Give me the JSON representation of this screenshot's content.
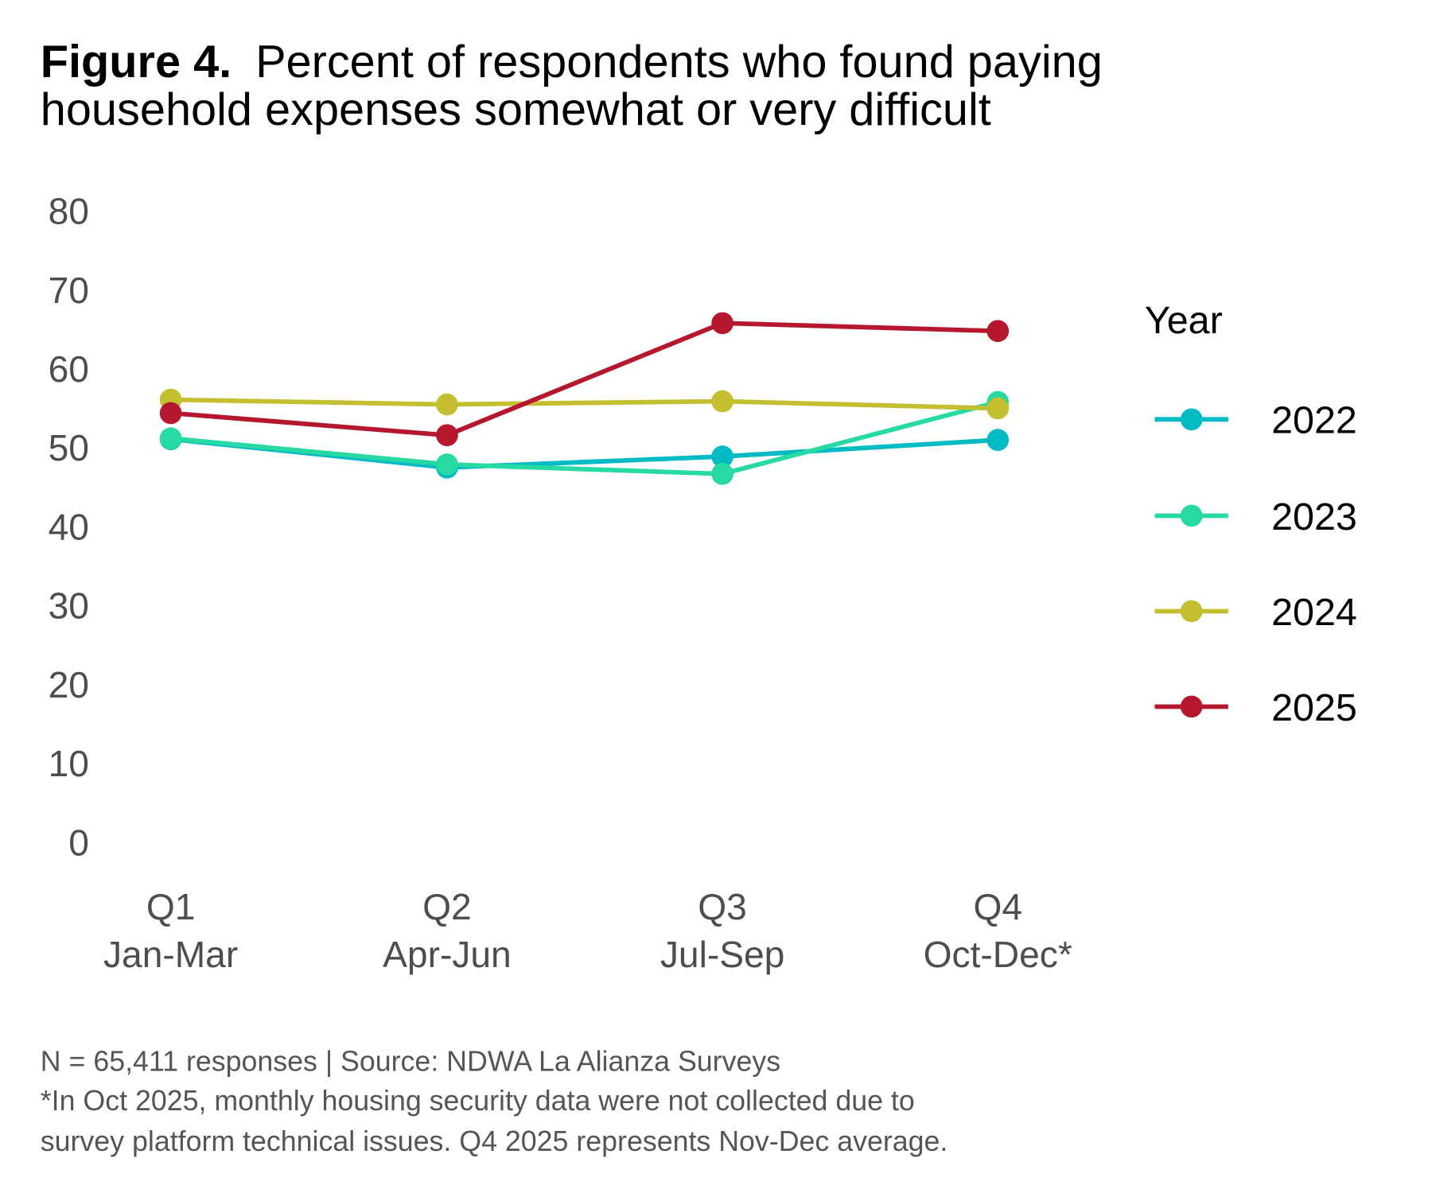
{
  "title": {
    "bold": "Figure 4.",
    "line1": "Percent of respondents who found paying",
    "line2": "household expenses somewhat or very difficult"
  },
  "chart_data": {
    "type": "line",
    "categories": [
      {
        "line1": "Q1",
        "line2": "Jan-Mar"
      },
      {
        "line1": "Q2",
        "line2": "Apr-Jun"
      },
      {
        "line1": "Q3",
        "line2": "Jul-Sep"
      },
      {
        "line1": "Q4",
        "line2": "Oct-Dec*"
      }
    ],
    "ylim": [
      0,
      80
    ],
    "yticks": [
      "0",
      "10",
      "20",
      "30",
      "40",
      "50",
      "60",
      "70",
      "80"
    ],
    "grid": false,
    "legend_title": "Year",
    "legend_position": "right",
    "series": [
      {
        "name": "2022",
        "color": "#00BAC4",
        "values": [
          51.1,
          47.5,
          48.9,
          51.0
        ]
      },
      {
        "name": "2023",
        "color": "#27D9A3",
        "values": [
          51.2,
          47.9,
          46.7,
          55.8
        ]
      },
      {
        "name": "2024",
        "color": "#C3BF30",
        "values": [
          56.1,
          55.5,
          55.9,
          55.0
        ]
      },
      {
        "name": "2025",
        "color": "#B5182E",
        "values": [
          54.4,
          51.6,
          65.8,
          64.8
        ]
      }
    ]
  },
  "footnotes": [
    "N = 65,411 responses | Source: NDWA La Alianza Surveys",
    "*In Oct 2025, monthly housing security data were not collected due to",
    "survey platform technical issues. Q4 2025 represents Nov-Dec average."
  ]
}
